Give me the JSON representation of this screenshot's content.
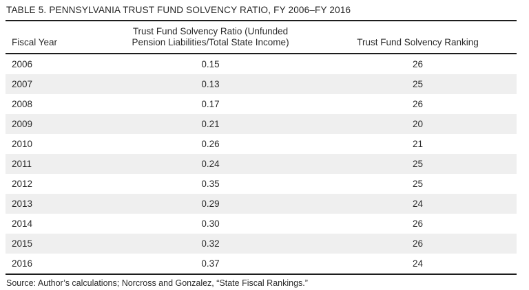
{
  "table": {
    "title": "TABLE 5. PENNSYLVANIA TRUST FUND SOLVENCY RATIO, FY 2006–FY 2016",
    "columns": {
      "fiscal_year": "Fiscal Year",
      "ratio_line1": "Trust Fund Solvency Ratio (Unfunded",
      "ratio_line2": "Pension Liabilities/Total State Income)",
      "ranking": "Trust Fund Solvency Ranking"
    },
    "rows": [
      {
        "year": "2006",
        "ratio": "0.15",
        "ranking": "26"
      },
      {
        "year": "2007",
        "ratio": "0.13",
        "ranking": "25"
      },
      {
        "year": "2008",
        "ratio": "0.17",
        "ranking": "26"
      },
      {
        "year": "2009",
        "ratio": "0.21",
        "ranking": "20"
      },
      {
        "year": "2010",
        "ratio": "0.26",
        "ranking": "21"
      },
      {
        "year": "2011",
        "ratio": "0.24",
        "ranking": "25"
      },
      {
        "year": "2012",
        "ratio": "0.35",
        "ranking": "25"
      },
      {
        "year": "2013",
        "ratio": "0.29",
        "ranking": "24"
      },
      {
        "year": "2014",
        "ratio": "0.30",
        "ranking": "26"
      },
      {
        "year": "2015",
        "ratio": "0.32",
        "ranking": "26"
      },
      {
        "year": "2016",
        "ratio": "0.37",
        "ranking": "24"
      }
    ],
    "source": "Source: Author’s calculations; Norcross and Gonzalez, “State Fiscal Rankings.”"
  },
  "colors": {
    "stripe": "#efefef",
    "rule": "#1d1d1d",
    "text": "#2b2b2b"
  }
}
